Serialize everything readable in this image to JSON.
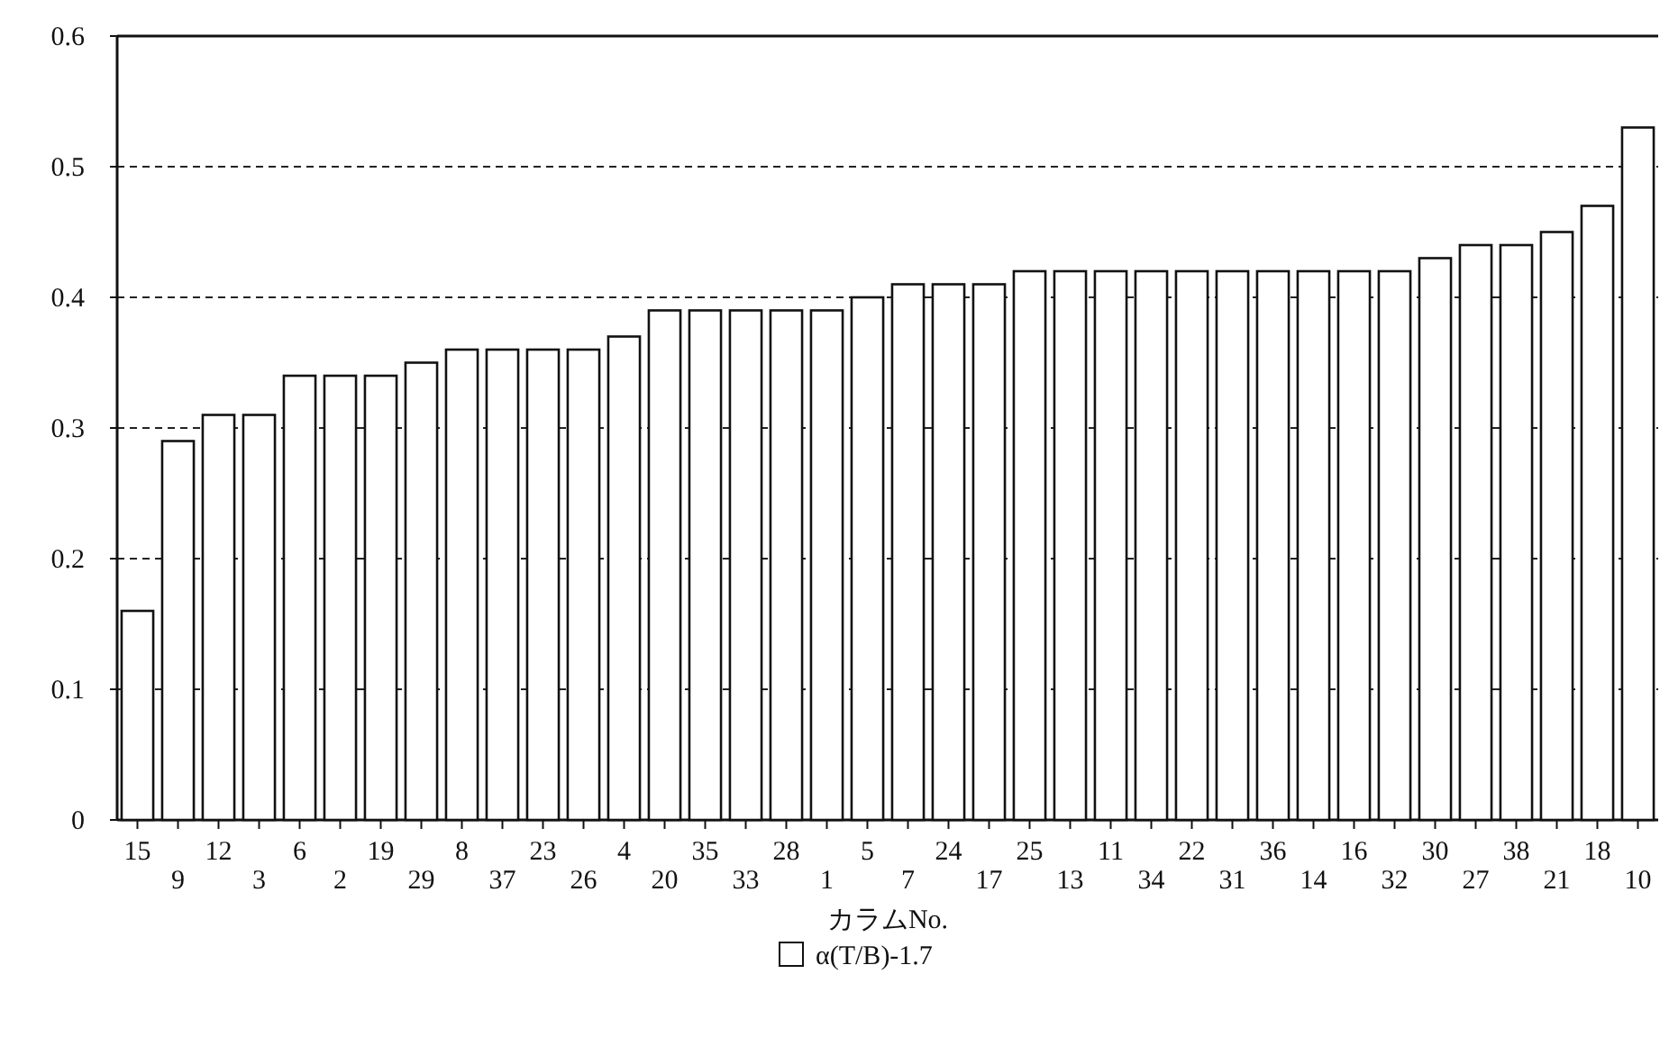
{
  "chart_data": {
    "type": "bar",
    "xlabel": "カラムNo.",
    "categories": [
      "15",
      "9",
      "12",
      "3",
      "6",
      "2",
      "19",
      "29",
      "8",
      "37",
      "23",
      "26",
      "4",
      "20",
      "35",
      "33",
      "28",
      "1",
      "5",
      "7",
      "24",
      "17",
      "25",
      "13",
      "11",
      "34",
      "22",
      "31",
      "36",
      "14",
      "16",
      "32",
      "30",
      "27",
      "38",
      "21",
      "18",
      "10"
    ],
    "series": [
      {
        "name": "α(T/B)-1.7",
        "color": "#ffffff",
        "values": [
          0.16,
          0.29,
          0.31,
          0.31,
          0.34,
          0.34,
          0.34,
          0.35,
          0.36,
          0.36,
          0.36,
          0.36,
          0.37,
          0.39,
          0.39,
          0.39,
          0.39,
          0.39,
          0.4,
          0.41,
          0.41,
          0.41,
          0.42,
          0.42,
          0.42,
          0.42,
          0.42,
          0.42,
          0.42,
          0.42,
          0.42,
          0.42,
          0.43,
          0.44,
          0.44,
          0.45,
          0.47,
          0.53
        ]
      }
    ],
    "ylim": [
      0,
      0.6
    ],
    "yticks": [
      0,
      0.1,
      0.2,
      0.3,
      0.4,
      0.5,
      0.6
    ],
    "grid": "y",
    "legend": "bottom"
  }
}
